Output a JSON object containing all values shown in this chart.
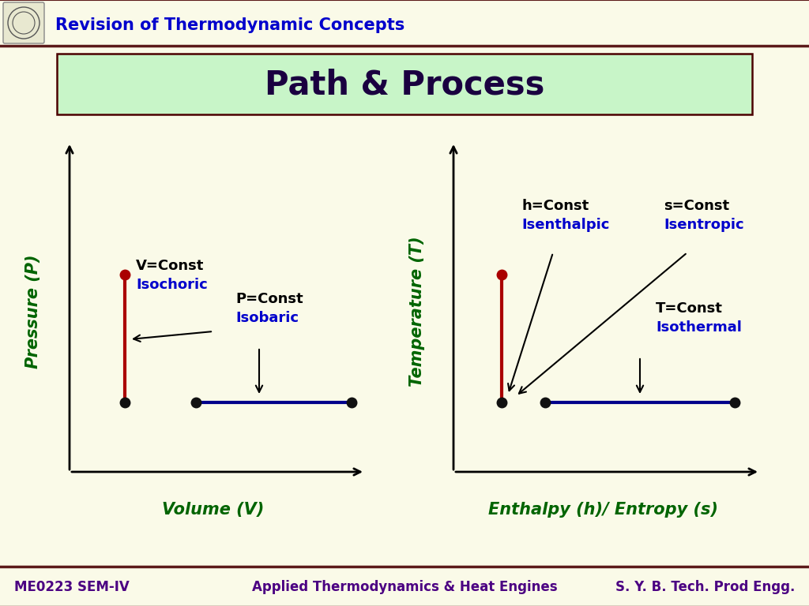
{
  "bg_color": "#FAFAE8",
  "header_border_color": "#5C1A1A",
  "title_text": "Path & Process",
  "title_box_bg": "#C8F5C8",
  "title_box_border": "#4B0000",
  "title_color": "#1A0040",
  "header_title": "Revision of Thermodynamic Concepts",
  "header_title_color": "#0000CC",
  "footer_text_left": "ME0223 SEM-IV",
  "footer_text_mid": "Applied Thermodynamics & Heat Engines",
  "footer_text_right": "S. Y. B. Tech. Prod Engg.",
  "footer_color": "#4B0082",
  "ylabel_left": "Pressure (P)",
  "xlabel_left": "Volume (V)",
  "ylabel_right": "Temperature (T)",
  "xlabel_right": "Enthalpy (h)/ Entropy (s)",
  "axis_label_color": "#006400",
  "isochoric_label1": "V=Const",
  "isochoric_label2": "Isochoric",
  "isobaric_label1": "P=Const",
  "isobaric_label2": "Isobaric",
  "isenthalpic_label1": "h=Const",
  "isenthalpic_label2": "Isenthalpic",
  "isentropic_label1": "s=Const",
  "isentropic_label2": "Isentropic",
  "isothermal_label1": "T=Const",
  "isothermal_label2": "Isothermal",
  "label_black": "#000000",
  "label_blue": "#0000CC",
  "red_line_color": "#AA0000",
  "blue_line_color": "#00008B",
  "dot_color": "#111111",
  "dot_color_red": "#AA0000"
}
